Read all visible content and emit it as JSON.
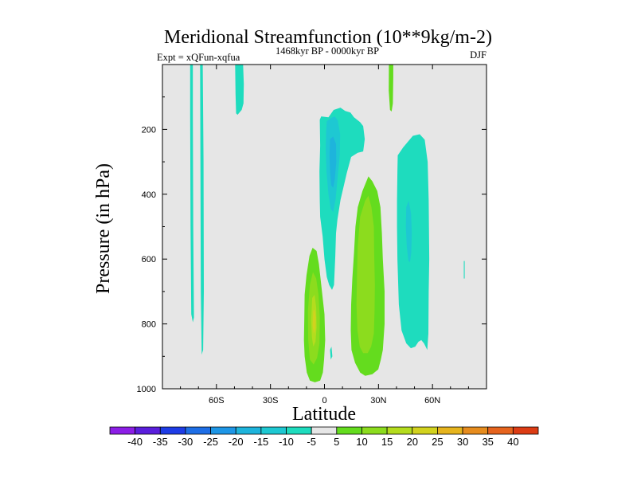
{
  "chart_data": {
    "type": "contour",
    "title": "Meridional Streamfunction (10**9kg/m-2)",
    "left_label": "Expt = xQFun-xqfua",
    "center_label": "1468kyr BP - 0000kyr BP",
    "right_label": "DJF",
    "xlabel": "Latitude",
    "ylabel": "Pressure (in hPa)",
    "xlim": [
      -90,
      90
    ],
    "ylim": [
      1000,
      0
    ],
    "x_ticks": [
      {
        "value": -60,
        "label": "60S"
      },
      {
        "value": -30,
        "label": "30S"
      },
      {
        "value": 0,
        "label": "0"
      },
      {
        "value": 30,
        "label": "30N"
      },
      {
        "value": 60,
        "label": "60N"
      }
    ],
    "y_ticks": [
      {
        "value": 200,
        "label": "200"
      },
      {
        "value": 400,
        "label": "400"
      },
      {
        "value": 600,
        "label": "600"
      },
      {
        "value": 800,
        "label": "800"
      },
      {
        "value": 1000,
        "label": "1000"
      }
    ],
    "background_color": "#e6e6e6",
    "colorbar": {
      "levels": [
        "-40",
        "-35",
        "-30",
        "-25",
        "-20",
        "-15",
        "-10",
        "-5",
        "5",
        "10",
        "15",
        "20",
        "25",
        "30",
        "35",
        "40"
      ],
      "colors": [
        "#8c1ee6",
        "#5a1edc",
        "#1e3ce6",
        "#1e6ee6",
        "#1e96e6",
        "#1eb4dc",
        "#1ec8d2",
        "#1edcbe",
        "#e6e6e6",
        "#64dc1e",
        "#8cdc1e",
        "#b4dc1e",
        "#d2d21e",
        "#e6b41e",
        "#e68c1e",
        "#e6641e",
        "#dc3c14"
      ]
    },
    "regions": [
      {
        "name": "sh-polar-cell-a",
        "level": -5,
        "polygon": [
          [
            -74.6,
            1
          ],
          [
            -73.1,
            1
          ],
          [
            -73.1,
            150
          ],
          [
            -72.9,
            500
          ],
          [
            -72.5,
            780
          ],
          [
            -73.1,
            795
          ],
          [
            -74.0,
            770
          ],
          [
            -74.4,
            500
          ],
          [
            -74.6,
            150
          ]
        ]
      },
      {
        "name": "sh-polar-cell-b",
        "level": -5,
        "polygon": [
          [
            -69.1,
            1
          ],
          [
            -67.6,
            1
          ],
          [
            -67.2,
            300
          ],
          [
            -67.0,
            700
          ],
          [
            -67.4,
            880
          ],
          [
            -68.2,
            895
          ],
          [
            -68.7,
            700
          ],
          [
            -68.9,
            300
          ]
        ]
      },
      {
        "name": "sh-upper-cell",
        "level": -5,
        "polygon": [
          [
            -49.6,
            1
          ],
          [
            -45.2,
            1
          ],
          [
            -44.8,
            60
          ],
          [
            -45.0,
            120
          ],
          [
            -46.0,
            140
          ],
          [
            -48.3,
            155
          ],
          [
            -49.1,
            150
          ],
          [
            -49.4,
            90
          ]
        ]
      },
      {
        "name": "tropical-negative-outer",
        "level": -5,
        "polygon": [
          [
            -2.6,
            170
          ],
          [
            -1.8,
            160
          ],
          [
            2.2,
            163
          ],
          [
            5.1,
            140
          ],
          [
            8.9,
            133
          ],
          [
            11.5,
            143
          ],
          [
            14.4,
            148
          ],
          [
            16.4,
            163
          ],
          [
            17.0,
            165
          ],
          [
            19.8,
            178
          ],
          [
            21.5,
            190
          ],
          [
            22.4,
            230
          ],
          [
            21.5,
            268
          ],
          [
            18.5,
            272
          ],
          [
            14.8,
            285
          ],
          [
            12.4,
            335
          ],
          [
            8.9,
            418
          ],
          [
            7.2,
            478
          ],
          [
            6.4,
            520
          ],
          [
            6.0,
            590
          ],
          [
            5.3,
            680
          ],
          [
            4.2,
            695
          ],
          [
            2.6,
            680
          ],
          [
            1.3,
            655
          ],
          [
            0.0,
            600
          ],
          [
            -1.0,
            530
          ],
          [
            -2.4,
            470
          ],
          [
            -2.6,
            420
          ],
          [
            -2.8,
            330
          ],
          [
            -2.4,
            250
          ]
        ]
      },
      {
        "name": "tropical-negative-mid",
        "level": -10,
        "polygon": [
          [
            1.3,
            175
          ],
          [
            3.5,
            165
          ],
          [
            5.7,
            160
          ],
          [
            7.4,
            172
          ],
          [
            8.7,
            215
          ],
          [
            8.5,
            280
          ],
          [
            7.4,
            345
          ],
          [
            6.2,
            415
          ],
          [
            4.8,
            455
          ],
          [
            3.5,
            445
          ],
          [
            2.2,
            400
          ],
          [
            1.1,
            330
          ],
          [
            0.7,
            260
          ],
          [
            0.9,
            210
          ]
        ]
      },
      {
        "name": "tropical-negative-core",
        "level": -15,
        "polygon": [
          [
            3.1,
            230
          ],
          [
            4.8,
            222
          ],
          [
            6.4,
            245
          ],
          [
            6.6,
            300
          ],
          [
            5.7,
            355
          ],
          [
            4.8,
            380
          ],
          [
            3.7,
            372
          ],
          [
            3.1,
            330
          ],
          [
            2.8,
            280
          ]
        ]
      },
      {
        "name": "mid-lat-negative-outer",
        "level": -5,
        "polygon": [
          [
            40.7,
            280
          ],
          [
            43.8,
            255
          ],
          [
            49.1,
            220
          ],
          [
            52.9,
            215
          ],
          [
            55.7,
            232
          ],
          [
            57.3,
            300
          ],
          [
            57.9,
            420
          ],
          [
            58.2,
            600
          ],
          [
            57.9,
            700
          ],
          [
            57.7,
            830
          ],
          [
            57.1,
            880
          ],
          [
            55.3,
            860
          ],
          [
            53.8,
            850
          ],
          [
            52.2,
            855
          ],
          [
            50.4,
            870
          ],
          [
            48.0,
            875
          ],
          [
            45.4,
            860
          ],
          [
            42.8,
            820
          ],
          [
            41.3,
            740
          ],
          [
            40.5,
            600
          ],
          [
            40.3,
            500
          ],
          [
            40.3,
            420
          ],
          [
            40.5,
            330
          ]
        ]
      },
      {
        "name": "mid-lat-negative-inner",
        "level": -10,
        "polygon": [
          [
            45.4,
            440
          ],
          [
            46.8,
            420
          ],
          [
            48.1,
            460
          ],
          [
            48.5,
            520
          ],
          [
            48.2,
            580
          ],
          [
            47.5,
            610
          ],
          [
            46.6,
            605
          ],
          [
            45.7,
            560
          ],
          [
            45.2,
            500
          ]
        ]
      },
      {
        "name": "nh-upper-cell",
        "level": 5,
        "polygon": [
          [
            35.8,
            1
          ],
          [
            38.2,
            1
          ],
          [
            38.2,
            40
          ],
          [
            38.0,
            120
          ],
          [
            37.3,
            145
          ],
          [
            36.4,
            140
          ],
          [
            35.7,
            80
          ]
        ]
      },
      {
        "name": "nh-spot",
        "level": -5,
        "polygon": [
          [
            77.4,
            606
          ],
          [
            77.9,
            606
          ],
          [
            77.9,
            660
          ],
          [
            77.4,
            660
          ]
        ]
      },
      {
        "name": "tropical-positive-outer",
        "level": 5,
        "polygon": [
          [
            -10.0,
            650
          ],
          [
            -8.3,
            590
          ],
          [
            -6.6,
            565
          ],
          [
            -4.4,
            575
          ],
          [
            -3.1,
            615
          ],
          [
            -1.6,
            690
          ],
          [
            0.0,
            770
          ],
          [
            0.4,
            850
          ],
          [
            -0.2,
            910
          ],
          [
            -0.9,
            950
          ],
          [
            -2.4,
            975
          ],
          [
            -5.3,
            980
          ],
          [
            -8.1,
            975
          ],
          [
            -9.8,
            950
          ],
          [
            -11.0,
            900
          ],
          [
            -11.4,
            850
          ],
          [
            -11.2,
            780
          ],
          [
            -11.0,
            710
          ]
        ]
      },
      {
        "name": "tropical-positive-mid",
        "level": 10,
        "polygon": [
          [
            -8.1,
            680
          ],
          [
            -6.4,
            640
          ],
          [
            -4.6,
            660
          ],
          [
            -3.3,
            710
          ],
          [
            -2.6,
            780
          ],
          [
            -2.8,
            860
          ],
          [
            -4.1,
            905
          ],
          [
            -6.0,
            925
          ],
          [
            -8.1,
            910
          ],
          [
            -9.0,
            850
          ],
          [
            -9.2,
            760
          ]
        ]
      },
      {
        "name": "tropical-positive-core",
        "level": 15,
        "polygon": [
          [
            -6.8,
            720
          ],
          [
            -5.5,
            710
          ],
          [
            -4.6,
            750
          ],
          [
            -4.4,
            810
          ],
          [
            -5.0,
            855
          ],
          [
            -6.2,
            870
          ],
          [
            -7.0,
            840
          ],
          [
            -7.4,
            790
          ]
        ]
      },
      {
        "name": "tropical-positive-peak",
        "level": 20,
        "polygon": [
          [
            -6.2,
            760
          ],
          [
            -5.5,
            755
          ],
          [
            -4.8,
            780
          ],
          [
            -5.0,
            815
          ],
          [
            -5.9,
            830
          ],
          [
            -6.6,
            805
          ]
        ]
      },
      {
        "name": "sh-positive-wedge",
        "level": -5,
        "polygon": [
          [
            3.1,
            880
          ],
          [
            3.9,
            870
          ],
          [
            4.4,
            900
          ],
          [
            3.5,
            910
          ]
        ]
      },
      {
        "name": "nh-positive-outer",
        "level": 5,
        "polygon": [
          [
            18.5,
            440
          ],
          [
            21.1,
            390
          ],
          [
            24.4,
            345
          ],
          [
            26.6,
            360
          ],
          [
            29.3,
            390
          ],
          [
            31.1,
            440
          ],
          [
            31.9,
            520
          ],
          [
            32.4,
            600
          ],
          [
            33.4,
            700
          ],
          [
            33.4,
            800
          ],
          [
            32.4,
            880
          ],
          [
            31.3,
            910
          ],
          [
            29.9,
            940
          ],
          [
            26.6,
            955
          ],
          [
            22.6,
            960
          ],
          [
            19.8,
            950
          ],
          [
            17.0,
            920
          ],
          [
            15.0,
            880
          ],
          [
            14.6,
            820
          ],
          [
            14.8,
            740
          ],
          [
            15.5,
            660
          ],
          [
            16.4,
            580
          ],
          [
            17.2,
            500
          ]
        ]
      },
      {
        "name": "nh-positive-inner",
        "level": 10,
        "polygon": [
          [
            19.8,
            470
          ],
          [
            22.6,
            420
          ],
          [
            24.4,
            405
          ],
          [
            26.1,
            440
          ],
          [
            27.4,
            500
          ],
          [
            27.6,
            580
          ],
          [
            28.0,
            680
          ],
          [
            27.8,
            760
          ],
          [
            27.4,
            830
          ],
          [
            25.9,
            870
          ],
          [
            24.0,
            890
          ],
          [
            21.5,
            890
          ],
          [
            19.6,
            870
          ],
          [
            18.3,
            820
          ],
          [
            17.8,
            740
          ],
          [
            18.1,
            650
          ],
          [
            18.5,
            560
          ]
        ]
      }
    ]
  }
}
